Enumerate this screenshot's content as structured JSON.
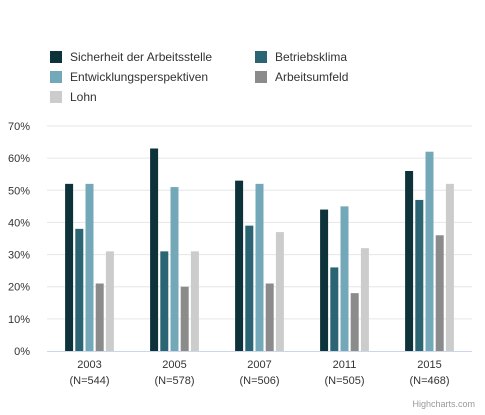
{
  "chart_data": {
    "type": "bar",
    "categories": [
      "2003",
      "2005",
      "2007",
      "2011",
      "2015"
    ],
    "category_sublabels": [
      "(N=544)",
      "(N=578)",
      "(N=506)",
      "(N=505)",
      "(N=468)"
    ],
    "series": [
      {
        "name": "Sicherheit der Arbeitsstelle",
        "color": "#0d3239",
        "values": [
          52,
          63,
          53,
          44,
          56
        ]
      },
      {
        "name": "Betriebsklima",
        "color": "#2b6573",
        "values": [
          38,
          31,
          39,
          26,
          47
        ]
      },
      {
        "name": "Entwicklungsperspektiven",
        "color": "#73a8b8",
        "values": [
          52,
          51,
          52,
          45,
          62
        ]
      },
      {
        "name": "Arbeitsumfeld",
        "color": "#8b8b8b",
        "values": [
          21,
          20,
          21,
          18,
          36
        ]
      },
      {
        "name": "Lohn",
        "color": "#cccccc",
        "values": [
          31,
          31,
          37,
          32,
          52
        ]
      }
    ],
    "y_ticks": [
      "0%",
      "10%",
      "20%",
      "30%",
      "40%",
      "50%",
      "60%",
      "70%"
    ],
    "ylim": [
      0,
      70
    ],
    "grid": true,
    "legend_position": "top-left"
  },
  "credit": "Highcharts.com"
}
